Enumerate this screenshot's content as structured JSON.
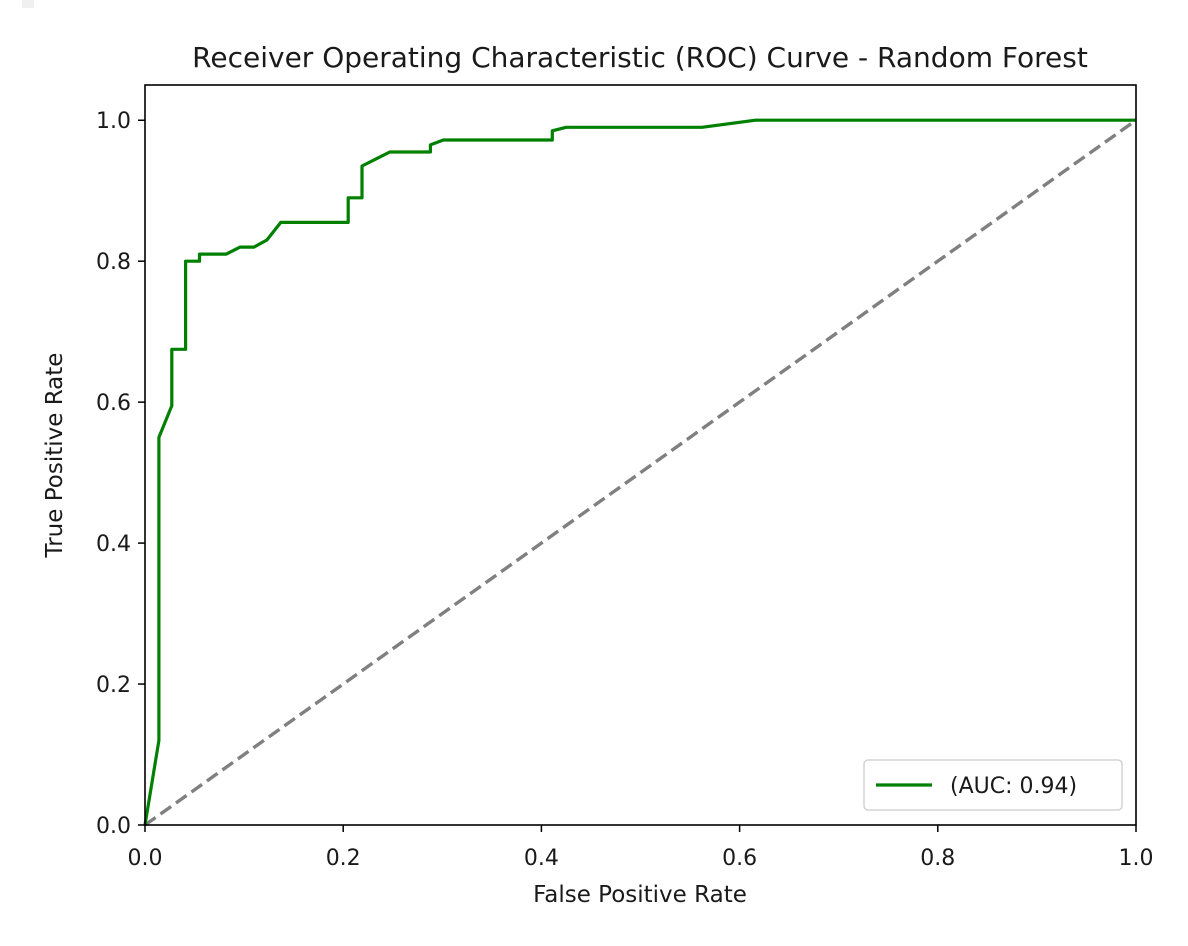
{
  "chart_data": {
    "type": "line",
    "title": "Receiver Operating Characteristic (ROC) Curve - Random Forest",
    "xlabel": "False Positive Rate",
    "ylabel": "True Positive Rate",
    "xlim": [
      0.0,
      1.0
    ],
    "ylim": [
      0.0,
      1.05
    ],
    "xticks": [
      "0.0",
      "0.2",
      "0.4",
      "0.6",
      "0.8",
      "1.0"
    ],
    "yticks": [
      "0.0",
      "0.2",
      "0.4",
      "0.6",
      "0.8",
      "1.0"
    ],
    "grid": false,
    "legend_position": "lower right",
    "series": [
      {
        "name": "(AUC: 0.94)",
        "color": "#008000",
        "style": "solid",
        "x": [
          0.0,
          0.014,
          0.014,
          0.027,
          0.027,
          0.041,
          0.041,
          0.055,
          0.055,
          0.082,
          0.096,
          0.11,
          0.123,
          0.137,
          0.205,
          0.205,
          0.219,
          0.219,
          0.247,
          0.288,
          0.288,
          0.301,
          0.411,
          0.411,
          0.425,
          0.562,
          0.616,
          1.0
        ],
        "y": [
          0.0,
          0.12,
          0.55,
          0.595,
          0.675,
          0.675,
          0.8,
          0.8,
          0.81,
          0.81,
          0.82,
          0.82,
          0.83,
          0.855,
          0.855,
          0.89,
          0.89,
          0.935,
          0.955,
          0.955,
          0.965,
          0.972,
          0.972,
          0.985,
          0.99,
          0.99,
          1.0,
          1.0
        ]
      },
      {
        "color": "#808080",
        "style": "dashed",
        "x": [
          0.0,
          1.0
        ],
        "y": [
          0.0,
          1.0
        ]
      }
    ]
  }
}
